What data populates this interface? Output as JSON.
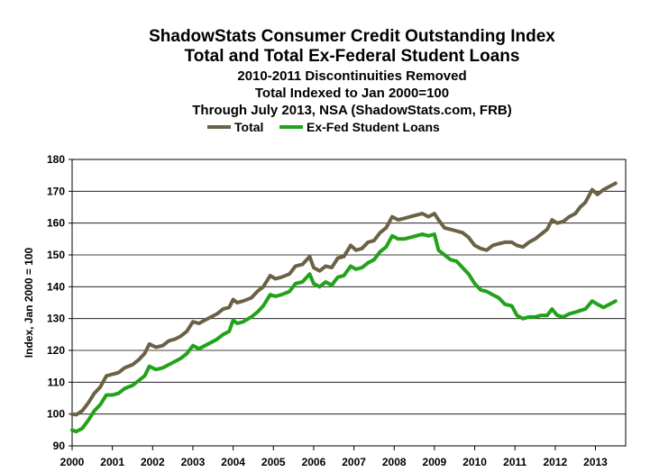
{
  "chart_data": {
    "type": "line",
    "title": "ShadowStats Consumer Credit Outstanding Index",
    "title_line2": "Total and Total Ex-Federal Student Loans",
    "subtitle1": "2010-2011 Discontinuities Removed",
    "subtitle2": "Total Indexed to Jan 2000=100",
    "subtitle3": "Through July 2013, NSA (ShadowStats.com, FRB)",
    "ylabel": "Index, Jan 2000 = 100",
    "xlabel": "",
    "ylim": [
      90,
      180
    ],
    "xlim": [
      2000,
      2013.75
    ],
    "yticks": [
      "90",
      "100",
      "110",
      "120",
      "130",
      "140",
      "150",
      "160",
      "170",
      "180"
    ],
    "xticks": [
      "2000",
      "2001",
      "2002",
      "2003",
      "2004",
      "2005",
      "2006",
      "2007",
      "2008",
      "2009",
      "2010",
      "2011",
      "2012",
      "2013"
    ],
    "grid": true,
    "legend_position": "top",
    "series": [
      {
        "name": "Total",
        "color": "#6b6245",
        "points": [
          [
            2000.0,
            100
          ],
          [
            2000.1,
            99.8
          ],
          [
            2000.25,
            101
          ],
          [
            2000.4,
            103.5
          ],
          [
            2000.55,
            106.5
          ],
          [
            2000.7,
            108.5
          ],
          [
            2000.85,
            112
          ],
          [
            2001.0,
            112.5
          ],
          [
            2001.15,
            113
          ],
          [
            2001.3,
            114.5
          ],
          [
            2001.5,
            115.5
          ],
          [
            2001.65,
            117
          ],
          [
            2001.8,
            119
          ],
          [
            2001.92,
            122
          ],
          [
            2002.08,
            121
          ],
          [
            2002.25,
            121.5
          ],
          [
            2002.4,
            123
          ],
          [
            2002.55,
            123.5
          ],
          [
            2002.7,
            124.5
          ],
          [
            2002.85,
            126
          ],
          [
            2003.0,
            129
          ],
          [
            2003.15,
            128.5
          ],
          [
            2003.3,
            129.5
          ],
          [
            2003.45,
            130.5
          ],
          [
            2003.6,
            131.5
          ],
          [
            2003.75,
            133
          ],
          [
            2003.9,
            133.5
          ],
          [
            2004.0,
            136
          ],
          [
            2004.1,
            135
          ],
          [
            2004.25,
            135.5
          ],
          [
            2004.45,
            136.5
          ],
          [
            2004.6,
            138.5
          ],
          [
            2004.75,
            140
          ],
          [
            2004.92,
            143.5
          ],
          [
            2005.05,
            142.5
          ],
          [
            2005.2,
            143
          ],
          [
            2005.4,
            144
          ],
          [
            2005.55,
            146.5
          ],
          [
            2005.72,
            147
          ],
          [
            2005.9,
            149.5
          ],
          [
            2006.0,
            146
          ],
          [
            2006.15,
            145
          ],
          [
            2006.3,
            146.5
          ],
          [
            2006.45,
            146
          ],
          [
            2006.6,
            149
          ],
          [
            2006.75,
            149.5
          ],
          [
            2006.92,
            153
          ],
          [
            2007.05,
            151.5
          ],
          [
            2007.2,
            152
          ],
          [
            2007.35,
            154
          ],
          [
            2007.5,
            154.5
          ],
          [
            2007.65,
            157
          ],
          [
            2007.8,
            158.5
          ],
          [
            2007.95,
            162
          ],
          [
            2008.1,
            161
          ],
          [
            2008.25,
            161.5
          ],
          [
            2008.4,
            162
          ],
          [
            2008.55,
            162.5
          ],
          [
            2008.7,
            163
          ],
          [
            2008.85,
            162
          ],
          [
            2009.0,
            163
          ],
          [
            2009.1,
            161
          ],
          [
            2009.25,
            158.5
          ],
          [
            2009.4,
            158
          ],
          [
            2009.55,
            157.5
          ],
          [
            2009.7,
            157
          ],
          [
            2009.85,
            155.5
          ],
          [
            2010.0,
            153
          ],
          [
            2010.15,
            152
          ],
          [
            2010.3,
            151.5
          ],
          [
            2010.45,
            153
          ],
          [
            2010.6,
            153.5
          ],
          [
            2010.75,
            154
          ],
          [
            2010.92,
            154
          ],
          [
            2011.05,
            153
          ],
          [
            2011.2,
            152.5
          ],
          [
            2011.35,
            154
          ],
          [
            2011.5,
            155
          ],
          [
            2011.65,
            156.5
          ],
          [
            2011.8,
            158
          ],
          [
            2011.92,
            161
          ],
          [
            2012.05,
            160
          ],
          [
            2012.2,
            160.5
          ],
          [
            2012.35,
            162
          ],
          [
            2012.5,
            163
          ],
          [
            2012.62,
            165
          ],
          [
            2012.75,
            166.5
          ],
          [
            2012.92,
            170.5
          ],
          [
            2013.05,
            169
          ],
          [
            2013.2,
            170.5
          ],
          [
            2013.35,
            171.5
          ],
          [
            2013.5,
            172.5
          ]
        ]
      },
      {
        "name": "Ex-Fed Student Loans",
        "color": "#22a21a",
        "points": [
          [
            2000.0,
            95
          ],
          [
            2000.1,
            94.5
          ],
          [
            2000.25,
            95.5
          ],
          [
            2000.4,
            98
          ],
          [
            2000.55,
            101
          ],
          [
            2000.7,
            103
          ],
          [
            2000.85,
            106
          ],
          [
            2001.0,
            106
          ],
          [
            2001.15,
            106.5
          ],
          [
            2001.3,
            108
          ],
          [
            2001.5,
            109
          ],
          [
            2001.65,
            110.5
          ],
          [
            2001.8,
            112
          ],
          [
            2001.92,
            115
          ],
          [
            2002.08,
            114
          ],
          [
            2002.25,
            114.5
          ],
          [
            2002.4,
            115.5
          ],
          [
            2002.55,
            116.5
          ],
          [
            2002.7,
            117.5
          ],
          [
            2002.85,
            119
          ],
          [
            2003.0,
            121.5
          ],
          [
            2003.15,
            120.5
          ],
          [
            2003.3,
            121.5
          ],
          [
            2003.45,
            122.5
          ],
          [
            2003.6,
            123.5
          ],
          [
            2003.75,
            125
          ],
          [
            2003.9,
            126
          ],
          [
            2004.0,
            129.5
          ],
          [
            2004.1,
            128.5
          ],
          [
            2004.25,
            129
          ],
          [
            2004.45,
            130.5
          ],
          [
            2004.6,
            132
          ],
          [
            2004.75,
            134
          ],
          [
            2004.92,
            137.5
          ],
          [
            2005.05,
            137
          ],
          [
            2005.2,
            137.5
          ],
          [
            2005.4,
            138.5
          ],
          [
            2005.55,
            141
          ],
          [
            2005.72,
            141.5
          ],
          [
            2005.9,
            144
          ],
          [
            2006.0,
            141
          ],
          [
            2006.15,
            140
          ],
          [
            2006.3,
            141.5
          ],
          [
            2006.45,
            140.5
          ],
          [
            2006.6,
            143
          ],
          [
            2006.75,
            143.5
          ],
          [
            2006.92,
            146.5
          ],
          [
            2007.05,
            145.5
          ],
          [
            2007.2,
            146
          ],
          [
            2007.35,
            147.5
          ],
          [
            2007.5,
            148.5
          ],
          [
            2007.65,
            151
          ],
          [
            2007.8,
            152.5
          ],
          [
            2007.95,
            156
          ],
          [
            2008.1,
            155
          ],
          [
            2008.25,
            155
          ],
          [
            2008.4,
            155.5
          ],
          [
            2008.55,
            156
          ],
          [
            2008.7,
            156.5
          ],
          [
            2008.85,
            156
          ],
          [
            2009.0,
            156.5
          ],
          [
            2009.1,
            151.5
          ],
          [
            2009.25,
            150
          ],
          [
            2009.4,
            148.5
          ],
          [
            2009.55,
            148
          ],
          [
            2009.7,
            146
          ],
          [
            2009.85,
            144
          ],
          [
            2010.0,
            141
          ],
          [
            2010.15,
            139
          ],
          [
            2010.3,
            138.5
          ],
          [
            2010.45,
            137.5
          ],
          [
            2010.6,
            136.5
          ],
          [
            2010.75,
            134.5
          ],
          [
            2010.92,
            134
          ],
          [
            2011.05,
            131
          ],
          [
            2011.2,
            130
          ],
          [
            2011.35,
            130.5
          ],
          [
            2011.5,
            130.5
          ],
          [
            2011.65,
            131
          ],
          [
            2011.8,
            131
          ],
          [
            2011.92,
            133
          ],
          [
            2012.05,
            131
          ],
          [
            2012.2,
            130.5
          ],
          [
            2012.35,
            131.5
          ],
          [
            2012.5,
            132
          ],
          [
            2012.62,
            132.5
          ],
          [
            2012.75,
            133
          ],
          [
            2012.92,
            135.5
          ],
          [
            2013.05,
            134.5
          ],
          [
            2013.2,
            133.5
          ],
          [
            2013.35,
            134.5
          ],
          [
            2013.5,
            135.5
          ]
        ]
      }
    ]
  }
}
